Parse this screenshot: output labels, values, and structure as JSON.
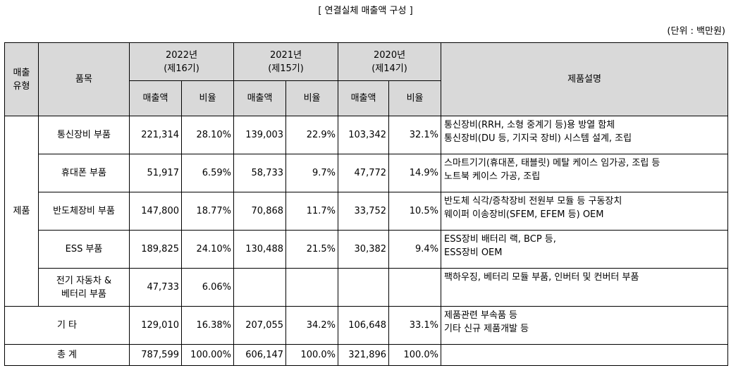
{
  "title": "[ 연결실체 매출액 구성 ]",
  "unit": "(단위 : 백만원)",
  "header": {
    "type_line1": "매출",
    "type_line2": "유형",
    "item": "품목",
    "y2022_line1": "2022년",
    "y2022_line2": "(제16기)",
    "y2021_line1": "2021년",
    "y2021_line2": "(제15기)",
    "y2020_line1": "2020년",
    "y2020_line2": "(제14기)",
    "description": "제품설명",
    "sales": "매출액",
    "ratio": "비율"
  },
  "group_product": "제품",
  "rows": [
    {
      "item_line1": "통신장비 부품",
      "item_line2": "",
      "s2022": "221,314",
      "r2022": "28.10%",
      "s2021": "139,003",
      "r2021": "22.9%",
      "s2020": "103,342",
      "r2020": "32.1%",
      "desc1": "통신장비(RRH, 소형 중계기 등)용 방열 함체",
      "desc2": "통신장비(DU 등, 기지국 장비) 시스템 설계, 조립"
    },
    {
      "item_line1": "휴대폰 부품",
      "item_line2": "",
      "s2022": "51,917",
      "r2022": "6.59%",
      "s2021": "58,733",
      "r2021": "9.7%",
      "s2020": "47,772",
      "r2020": "14.9%",
      "desc1": "스마트기기(휴대폰, 태블릿) 메탈 케이스 임가공, 조립 등",
      "desc2": "노트북 케이스 가공, 조립"
    },
    {
      "item_line1": "반도체장비 부품",
      "item_line2": "",
      "s2022": "147,800",
      "r2022": "18.77%",
      "s2021": "70,868",
      "r2021": "11.7%",
      "s2020": "33,752",
      "r2020": "10.5%",
      "desc1": "반도체 식각/증착장비 전원부 모듈 등 구동장치",
      "desc2": "웨이퍼 이송장비(SFEM, EFEM 등) OEM"
    },
    {
      "item_line1": "ESS 부품",
      "item_line2": "",
      "s2022": "189,825",
      "r2022": "24.10%",
      "s2021": "130,488",
      "r2021": "21.5%",
      "s2020": "30,382",
      "r2020": "9.4%",
      "desc1": "ESS장비 배터리 랙, BCP 등,",
      "desc2": "ESS장비 OEM"
    },
    {
      "item_line1": "전기 자동차 &",
      "item_line2": "베터리 부품",
      "s2022": "47,733",
      "r2022": "6.06%",
      "s2021": "",
      "r2021": "",
      "s2020": "",
      "r2020": "",
      "desc1": "팩하우징, 베터리 모듈 부품, 인버터 및 컨버터 부품",
      "desc2": ""
    }
  ],
  "other": {
    "label": "기 타",
    "s2022": "129,010",
    "r2022": "16.38%",
    "s2021": "207,055",
    "r2021": "34.2%",
    "s2020": "106,648",
    "r2020": "33.1%",
    "desc1": "제품관련 부속품 등",
    "desc2": "기타 신규 제품개발 등"
  },
  "total": {
    "label": "총 계",
    "s2022": "787,599",
    "r2022": "100.00%",
    "s2021": "606,147",
    "r2021": "100.0%",
    "s2020": "321,896",
    "r2020": "100.0%",
    "desc1": ""
  }
}
